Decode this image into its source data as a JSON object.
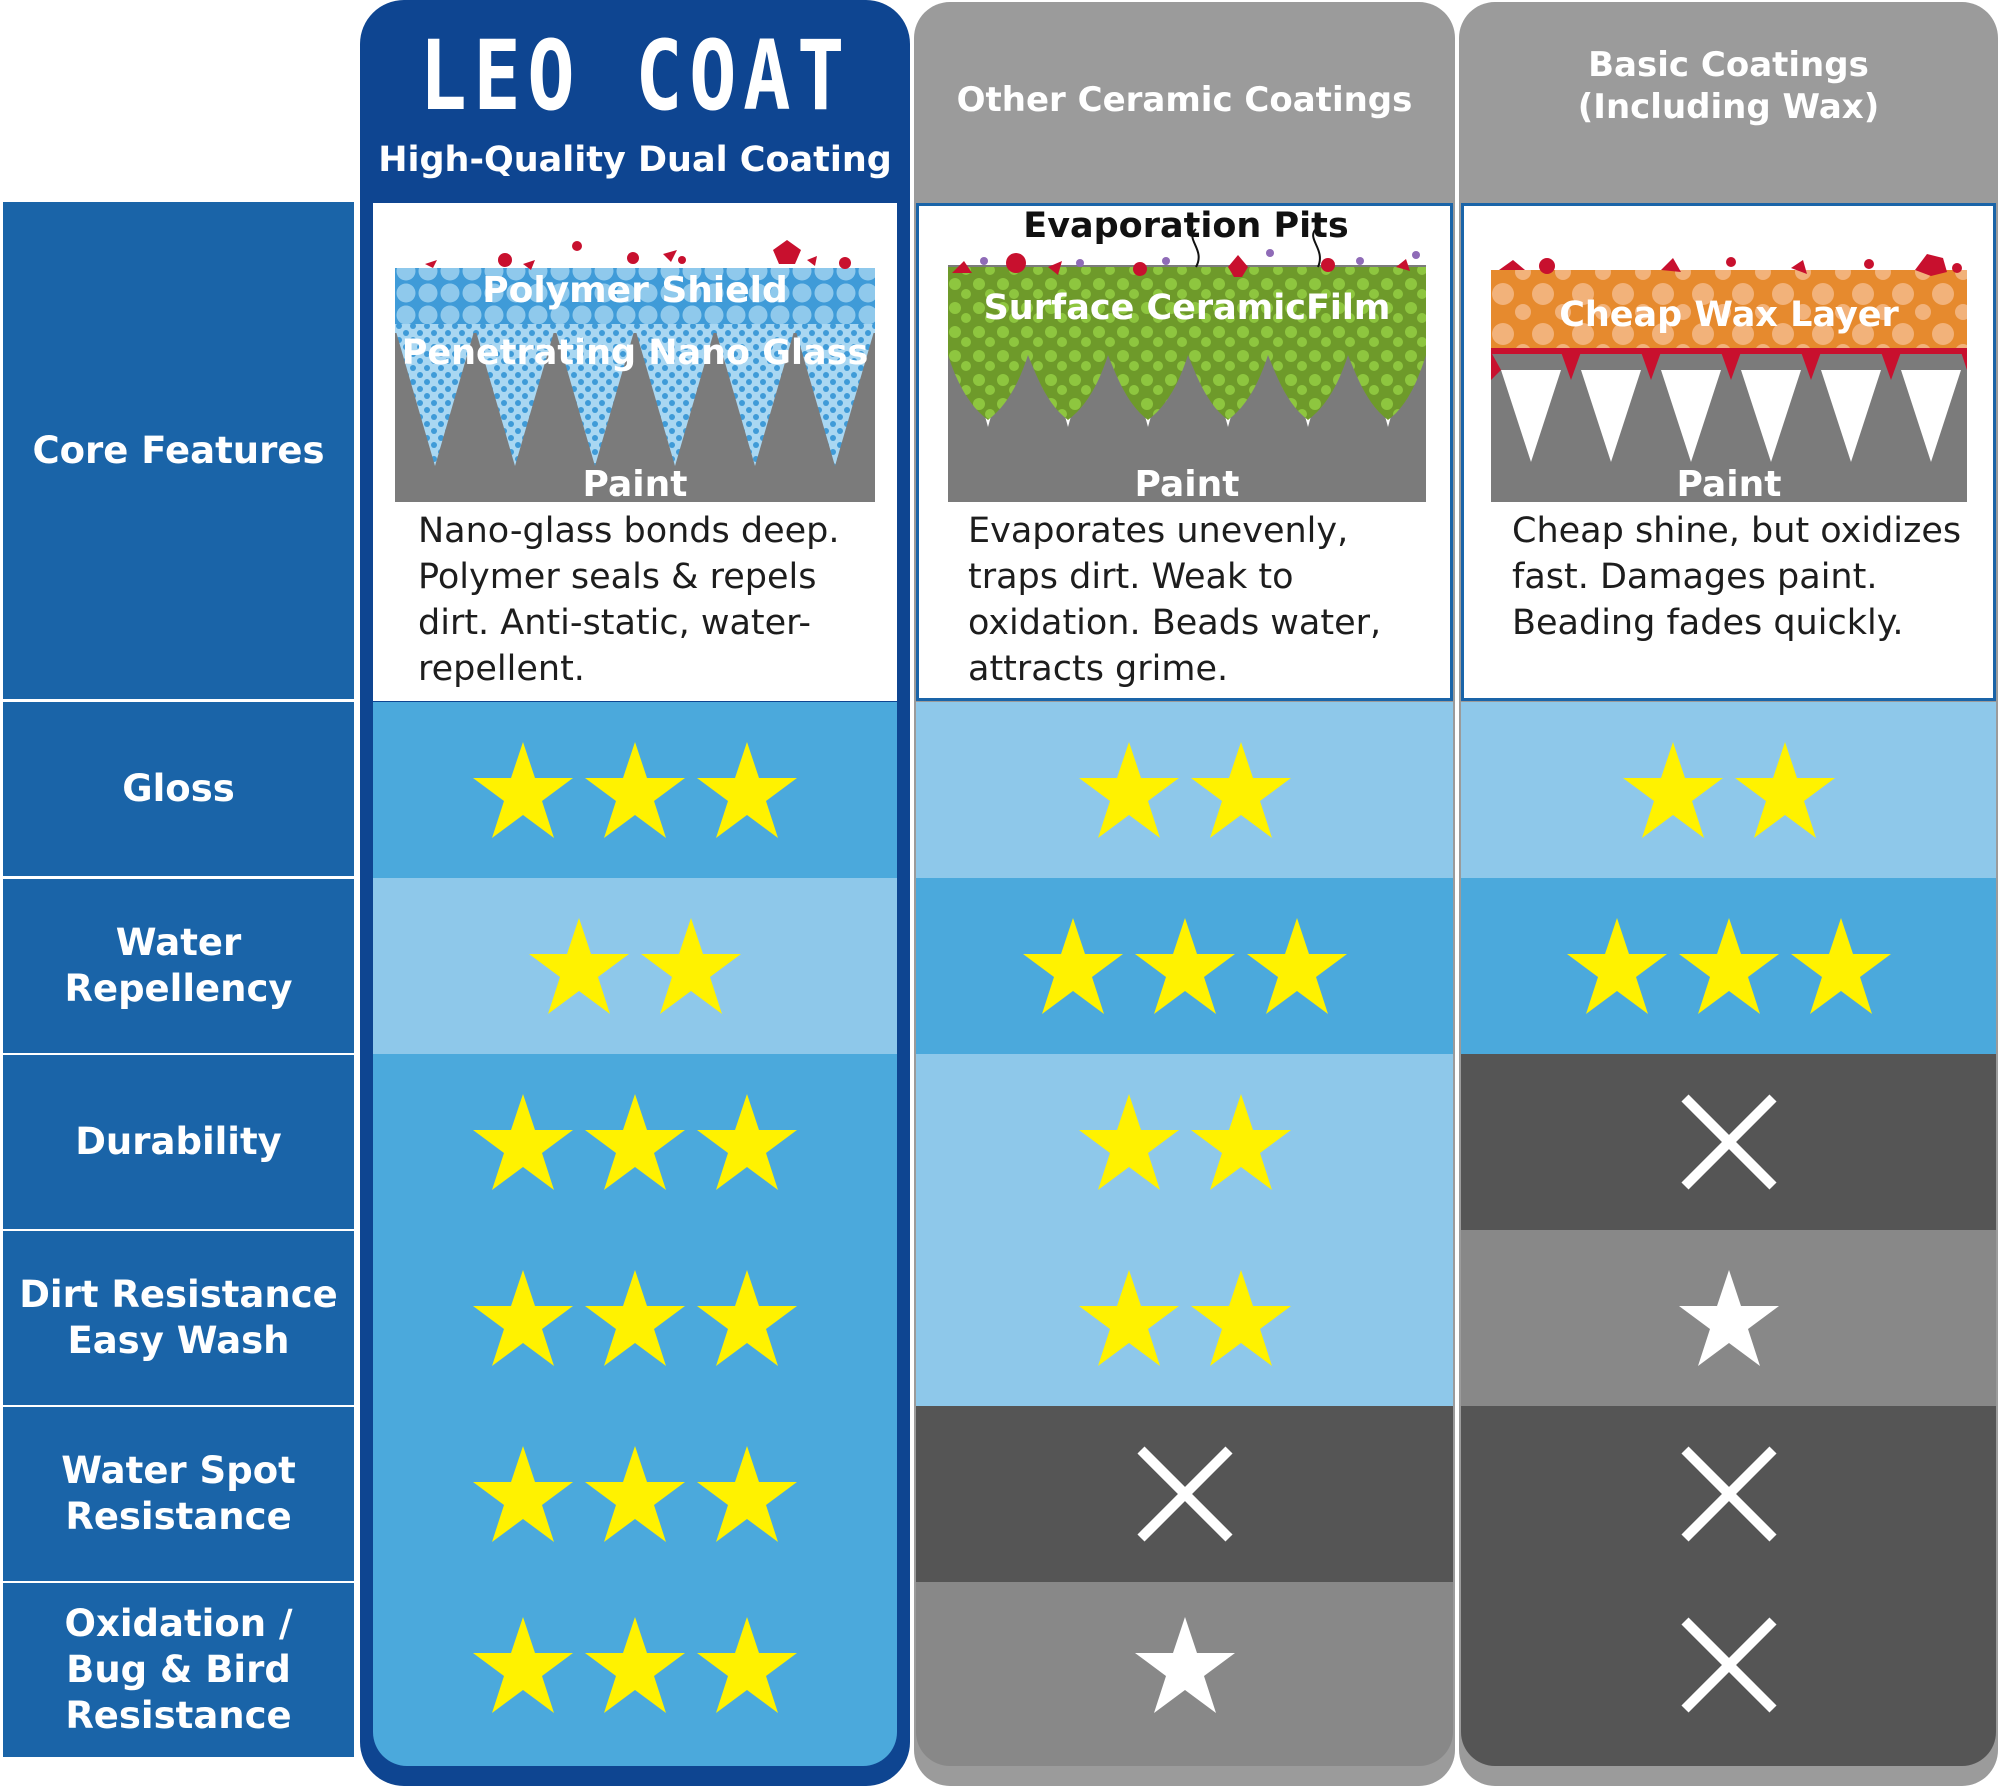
{
  "colors": {
    "leo_blue": "#0e4591",
    "label_blue": "#1a64a8",
    "cell_blue": "#4ba9dc",
    "cell_light_blue": "#8ec8ea",
    "cell_dark": "#555555",
    "cell_gray": "#888888",
    "header_gray": "#9b9b9b",
    "star_yellow": "#fff200",
    "star_white": "#ffffff"
  },
  "columns": [
    {
      "title": "LEO COAT",
      "subtitle": "High-Quality Dual Coating"
    },
    {
      "title": "Other Ceramic Coatings",
      "subtitle": ""
    },
    {
      "title": "Basic Coatings\n(Including Wax)",
      "subtitle": ""
    }
  ],
  "core_features": {
    "label": "Core Features",
    "diagrams": [
      {
        "labels": [
          "Polymer Shield",
          "Penetrating Nano Glass",
          "Paint"
        ],
        "description": "Nano-glass bonds deep. Polymer seals & repels dirt. Anti-static, water-repellent."
      },
      {
        "labels": [
          "Evaporation Pits",
          "Surface CeramicFilm",
          "Paint"
        ],
        "description": "Evaporates unevenly, traps dirt. Weak to oxidation. Beads water, attracts grime."
      },
      {
        "labels": [
          "Cheap Wax Layer",
          "Paint"
        ],
        "description": "Cheap shine, but oxidizes fast. Damages paint. Beading fades quickly."
      }
    ]
  },
  "rows": [
    {
      "label": "Gloss",
      "ratings": [
        {
          "value": 3,
          "icon": "star-icon",
          "color": "#fff200",
          "bg": "#4ba9dc"
        },
        {
          "value": 2,
          "icon": "star-icon",
          "color": "#fff200",
          "bg": "#8ec8ea"
        },
        {
          "value": 2,
          "icon": "star-icon",
          "color": "#fff200",
          "bg": "#8ec8ea"
        }
      ]
    },
    {
      "label": "Water Repellency",
      "ratings": [
        {
          "value": 2,
          "icon": "star-icon",
          "color": "#fff200",
          "bg": "#8ec8ea"
        },
        {
          "value": 3,
          "icon": "star-icon",
          "color": "#fff200",
          "bg": "#4ba9dc"
        },
        {
          "value": 3,
          "icon": "star-icon",
          "color": "#fff200",
          "bg": "#4ba9dc"
        }
      ]
    },
    {
      "label": "Durability",
      "ratings": [
        {
          "value": 3,
          "icon": "star-icon",
          "color": "#fff200",
          "bg": "#4ba9dc"
        },
        {
          "value": 2,
          "icon": "star-icon",
          "color": "#fff200",
          "bg": "#8ec8ea"
        },
        {
          "value": 0,
          "icon": "cross-icon",
          "color": "#ffffff",
          "bg": "#555555"
        }
      ]
    },
    {
      "label": "Dirt Resistance\nEasy Wash",
      "ratings": [
        {
          "value": 3,
          "icon": "star-icon",
          "color": "#fff200",
          "bg": "#4ba9dc"
        },
        {
          "value": 2,
          "icon": "star-icon",
          "color": "#fff200",
          "bg": "#8ec8ea"
        },
        {
          "value": 1,
          "icon": "star-icon",
          "color": "#ffffff",
          "bg": "#888888"
        }
      ]
    },
    {
      "label": "Water Spot\nResistance",
      "ratings": [
        {
          "value": 3,
          "icon": "star-icon",
          "color": "#fff200",
          "bg": "#4ba9dc"
        },
        {
          "value": 0,
          "icon": "cross-icon",
          "color": "#ffffff",
          "bg": "#555555"
        },
        {
          "value": 0,
          "icon": "cross-icon",
          "color": "#ffffff",
          "bg": "#555555"
        }
      ]
    },
    {
      "label": "Oxidation /\nBug & Bird\nResistance",
      "ratings": [
        {
          "value": 3,
          "icon": "star-icon",
          "color": "#fff200",
          "bg": "#4ba9dc"
        },
        {
          "value": 1,
          "icon": "star-icon",
          "color": "#ffffff",
          "bg": "#888888"
        },
        {
          "value": 0,
          "icon": "cross-icon",
          "color": "#ffffff",
          "bg": "#555555"
        }
      ]
    }
  ]
}
